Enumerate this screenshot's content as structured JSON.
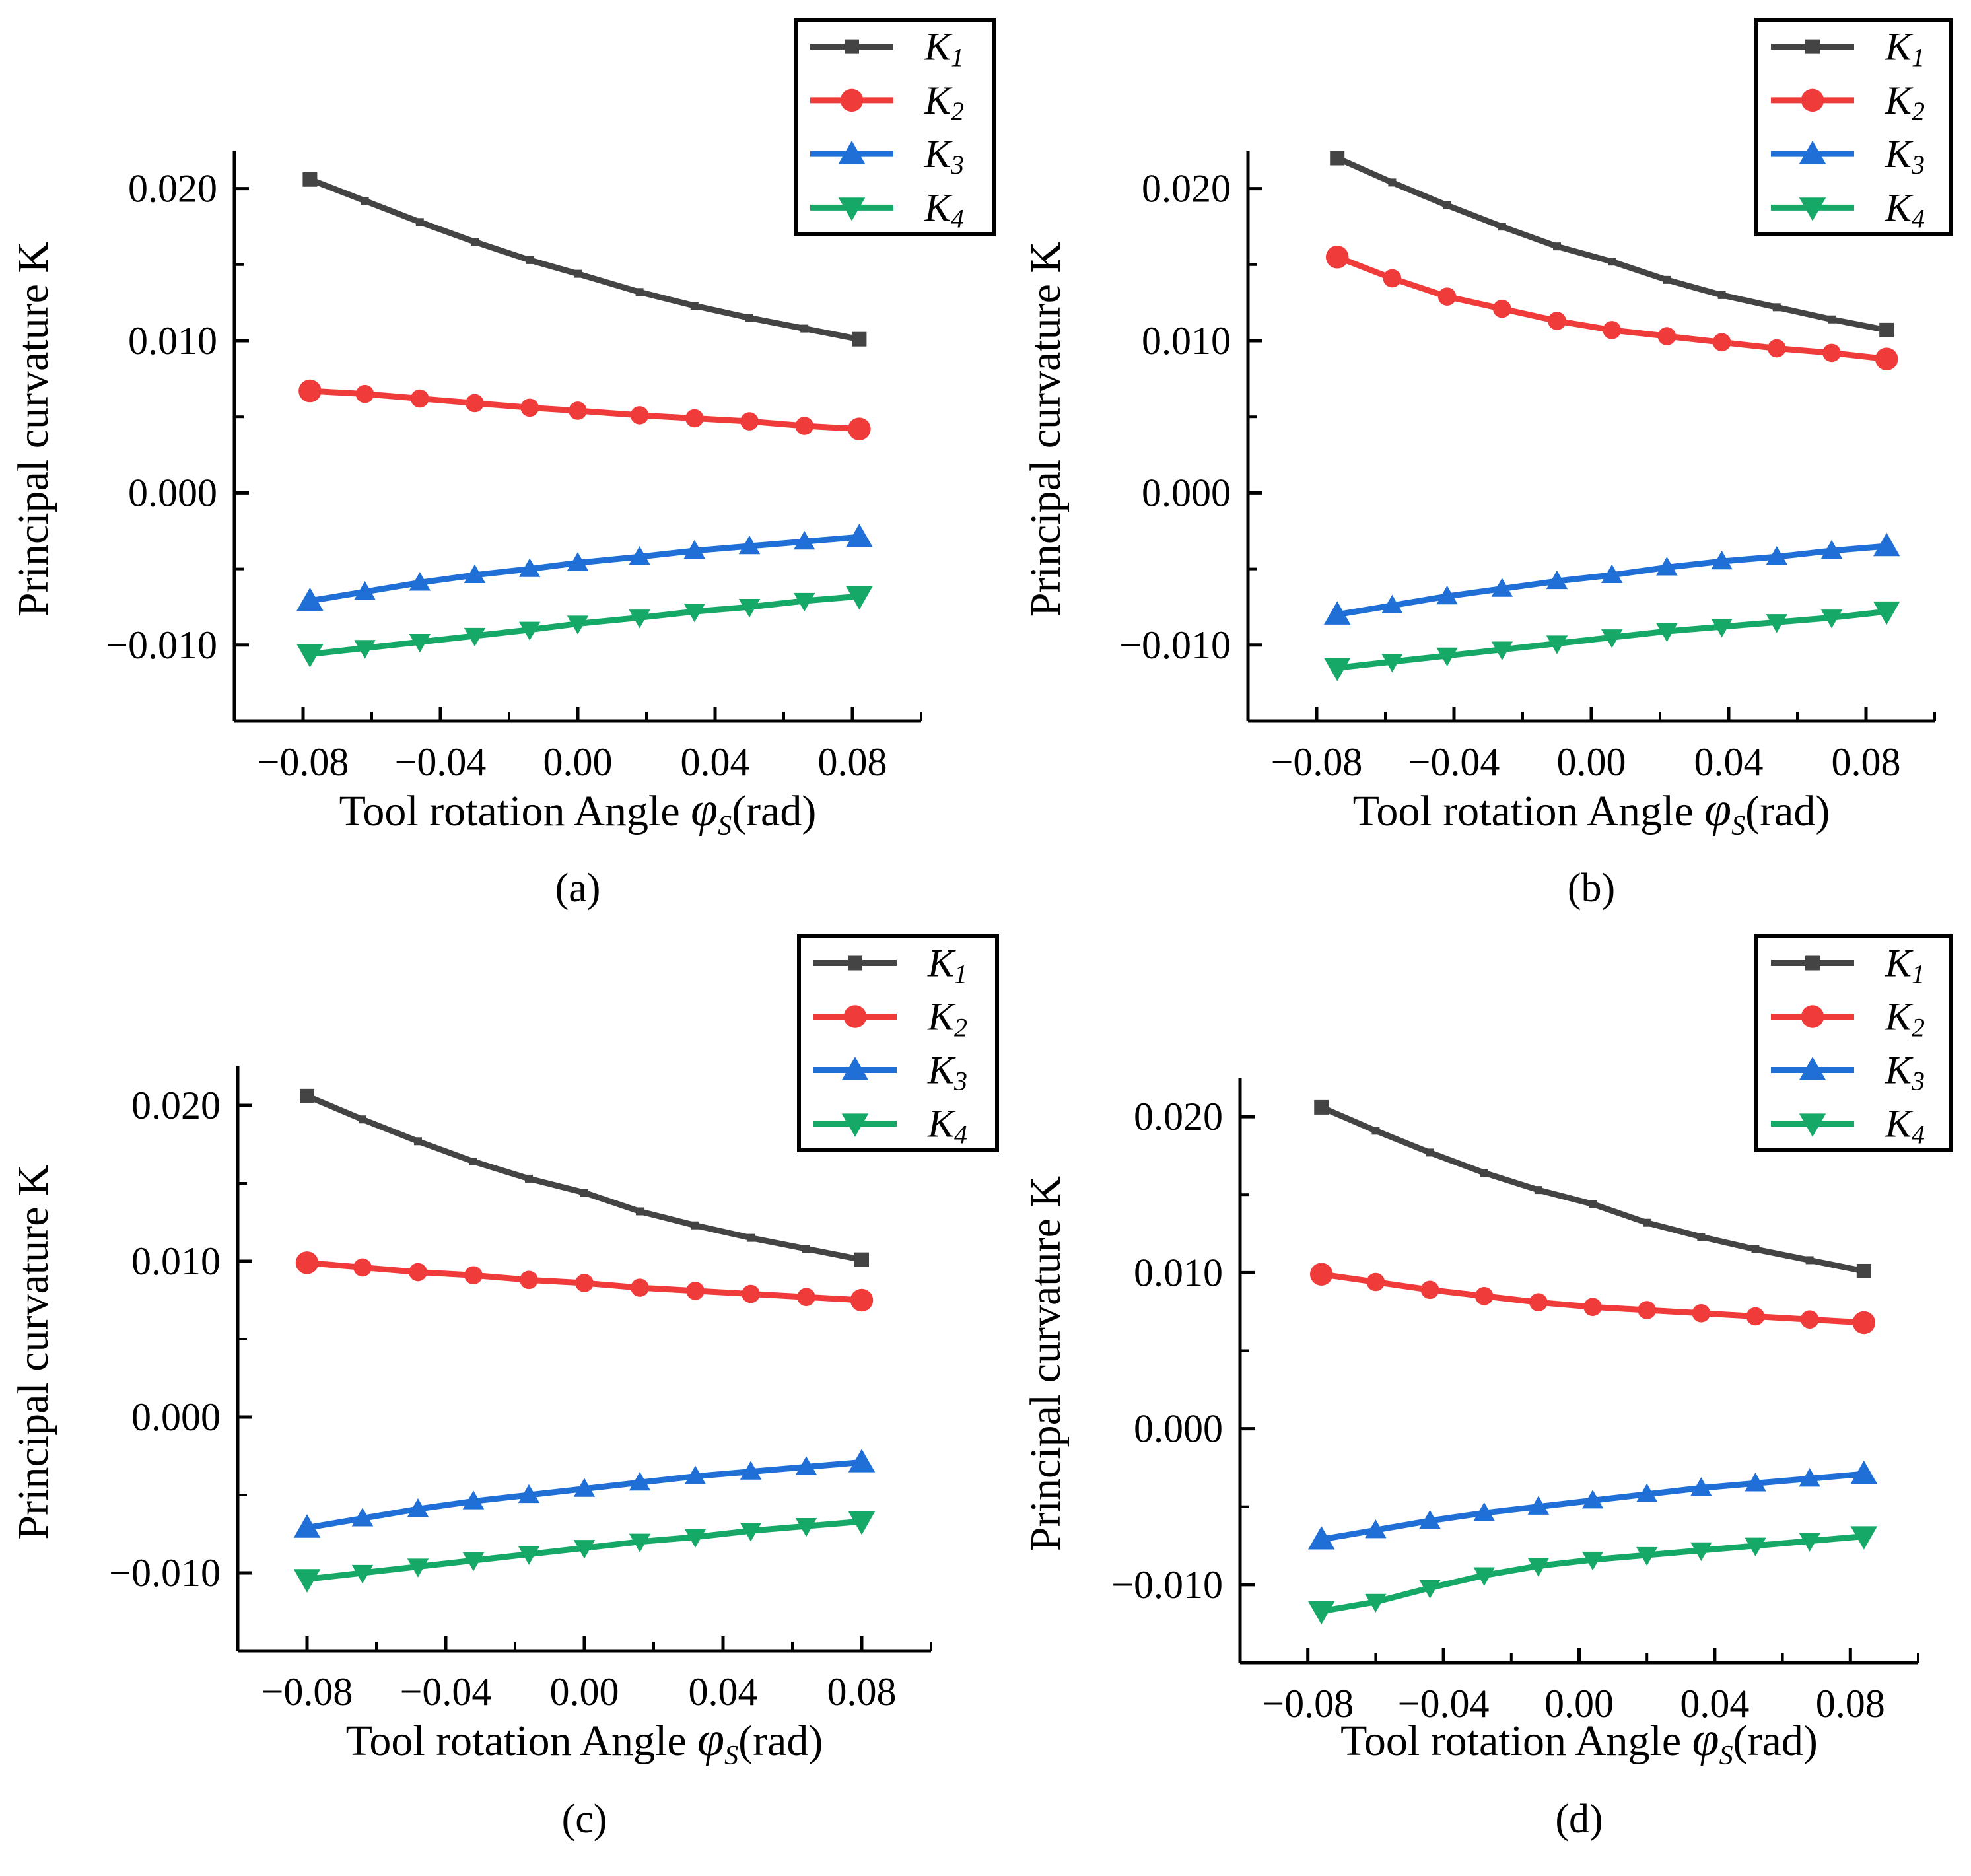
{
  "figure": {
    "panels": [
      "a",
      "b",
      "c",
      "d"
    ]
  },
  "chart_data": [
    {
      "panel_label": "(a)",
      "type": "line",
      "xlabel": "Tool rotation Angle",
      "xlabel_symbol": "φ",
      "xlabel_symbol_sub": "S",
      "xlabel_unit": "(rad)",
      "ylabel": "Principal curvature K",
      "xlim": [
        -0.1,
        0.1
      ],
      "ylim": [
        -0.015,
        0.0225
      ],
      "xticks": [
        -0.08,
        -0.04,
        0.0,
        0.04,
        0.08
      ],
      "xtick_labels": [
        "−0.08",
        "−0.04",
        "0.00",
        "0.04",
        "0.08"
      ],
      "yticks": [
        0.02,
        0.01,
        0.0,
        -0.01
      ],
      "ytick_labels": [
        "0.020",
        "0.010",
        "0.000",
        "−0.010"
      ],
      "legend_position": "top-right",
      "x": [
        -0.078,
        -0.062,
        -0.046,
        -0.03,
        -0.014,
        0.0,
        0.018,
        0.034,
        0.05,
        0.066,
        0.082
      ],
      "series": [
        {
          "name": "K",
          "sub": "1",
          "color": "#444444",
          "marker": "square",
          "values": [
            0.0206,
            0.0192,
            0.0178,
            0.0165,
            0.0153,
            0.0144,
            0.0132,
            0.0123,
            0.0115,
            0.0108,
            0.0101
          ]
        },
        {
          "name": "K",
          "sub": "2",
          "color": "#f03b3b",
          "marker": "circle",
          "values": [
            0.0067,
            0.0065,
            0.0062,
            0.0059,
            0.0056,
            0.0054,
            0.0051,
            0.0049,
            0.0047,
            0.0044,
            0.0042
          ]
        },
        {
          "name": "K",
          "sub": "3",
          "color": "#1f6fd6",
          "marker": "triangle-up",
          "values": [
            -0.0071,
            -0.0065,
            -0.0059,
            -0.0054,
            -0.005,
            -0.0046,
            -0.0042,
            -0.0038,
            -0.0035,
            -0.0032,
            -0.0029
          ]
        },
        {
          "name": "K",
          "sub": "4",
          "color": "#16a866",
          "marker": "triangle-down",
          "values": [
            -0.0106,
            -0.0102,
            -0.0098,
            -0.0094,
            -0.009,
            -0.0086,
            -0.0082,
            -0.0078,
            -0.0075,
            -0.0071,
            -0.0068
          ]
        }
      ]
    },
    {
      "panel_label": "(b)",
      "type": "line",
      "xlabel": "Tool rotation Angle",
      "xlabel_symbol": "φ",
      "xlabel_symbol_sub": "S",
      "xlabel_unit": "(rad)",
      "ylabel": "Principal curvature K",
      "xlim": [
        -0.1,
        0.1
      ],
      "ylim": [
        -0.015,
        0.0225
      ],
      "xticks": [
        -0.08,
        -0.04,
        0.0,
        0.04,
        0.08
      ],
      "xtick_labels": [
        "−0.08",
        "−0.04",
        "0.00",
        "0.04",
        "0.08"
      ],
      "yticks": [
        0.02,
        0.01,
        0.0,
        -0.01
      ],
      "ytick_labels": [
        "0.020",
        "0.010",
        "0.000",
        "−0.010"
      ],
      "legend_position": "top-right",
      "x": [
        -0.074,
        -0.058,
        -0.042,
        -0.026,
        -0.01,
        0.006,
        0.022,
        0.038,
        0.054,
        0.07,
        0.086
      ],
      "series": [
        {
          "name": "K",
          "sub": "1",
          "color": "#444444",
          "marker": "square",
          "values": [
            0.022,
            0.0204,
            0.0189,
            0.0175,
            0.0162,
            0.0152,
            0.014,
            0.013,
            0.0122,
            0.0114,
            0.0107
          ]
        },
        {
          "name": "K",
          "sub": "2",
          "color": "#f03b3b",
          "marker": "circle",
          "values": [
            0.0155,
            0.0141,
            0.0129,
            0.0121,
            0.0113,
            0.0107,
            0.0103,
            0.0099,
            0.0095,
            0.0092,
            0.0088
          ]
        },
        {
          "name": "K",
          "sub": "3",
          "color": "#1f6fd6",
          "marker": "triangle-up",
          "values": [
            -0.008,
            -0.0074,
            -0.0068,
            -0.0063,
            -0.0058,
            -0.0054,
            -0.0049,
            -0.0045,
            -0.0042,
            -0.0038,
            -0.0035
          ]
        },
        {
          "name": "K",
          "sub": "4",
          "color": "#16a866",
          "marker": "triangle-down",
          "values": [
            -0.0115,
            -0.0111,
            -0.0107,
            -0.0103,
            -0.0099,
            -0.0095,
            -0.0091,
            -0.0088,
            -0.0085,
            -0.0082,
            -0.0078
          ]
        }
      ]
    },
    {
      "panel_label": "(c)",
      "type": "line",
      "xlabel": "Tool rotation Angle",
      "xlabel_symbol": "φ",
      "xlabel_symbol_sub": "S",
      "xlabel_unit": "(rad)",
      "ylabel": "Principal curvature K",
      "xlim": [
        -0.1,
        0.1
      ],
      "ylim": [
        -0.015,
        0.0225
      ],
      "xticks": [
        -0.08,
        -0.04,
        0.0,
        0.04,
        0.08
      ],
      "xtick_labels": [
        "−0.08",
        "−0.04",
        "0.00",
        "0.04",
        "0.08"
      ],
      "yticks": [
        0.02,
        0.01,
        0.0,
        -0.01
      ],
      "ytick_labels": [
        "0.020",
        "0.010",
        "0.000",
        "−0.010"
      ],
      "legend_position": "top-right",
      "x": [
        -0.08,
        -0.064,
        -0.048,
        -0.032,
        -0.016,
        0.0,
        0.016,
        0.032,
        0.048,
        0.064,
        0.08
      ],
      "series": [
        {
          "name": "K",
          "sub": "1",
          "color": "#444444",
          "marker": "square",
          "values": [
            0.0206,
            0.0191,
            0.0177,
            0.0164,
            0.0153,
            0.0144,
            0.0132,
            0.0123,
            0.0115,
            0.0108,
            0.0101
          ]
        },
        {
          "name": "K",
          "sub": "2",
          "color": "#f03b3b",
          "marker": "circle",
          "values": [
            0.0099,
            0.0096,
            0.0093,
            0.0091,
            0.0088,
            0.0086,
            0.0083,
            0.0081,
            0.0079,
            0.0077,
            0.0075
          ]
        },
        {
          "name": "K",
          "sub": "3",
          "color": "#1f6fd6",
          "marker": "triangle-up",
          "values": [
            -0.0071,
            -0.0065,
            -0.0059,
            -0.0054,
            -0.005,
            -0.0046,
            -0.0042,
            -0.0038,
            -0.0035,
            -0.0032,
            -0.0029
          ]
        },
        {
          "name": "K",
          "sub": "4",
          "color": "#16a866",
          "marker": "triangle-down",
          "values": [
            -0.0104,
            -0.01,
            -0.0096,
            -0.0092,
            -0.0088,
            -0.0084,
            -0.008,
            -0.0077,
            -0.0073,
            -0.007,
            -0.0067
          ]
        }
      ]
    },
    {
      "panel_label": "(d)",
      "type": "line",
      "xlabel": "Tool rotation Angle",
      "xlabel_symbol": "φ",
      "xlabel_symbol_sub": "S",
      "xlabel_unit": "(rad)",
      "ylabel": "Principal curvature K",
      "xlim": [
        -0.1,
        0.1
      ],
      "ylim": [
        -0.015,
        0.0225
      ],
      "xticks": [
        -0.08,
        -0.04,
        0.0,
        0.04,
        0.08
      ],
      "xtick_labels": [
        "−0.08",
        "−0.04",
        "0.00",
        "0.04",
        "0.08"
      ],
      "yticks": [
        0.02,
        0.01,
        0.0,
        -0.01
      ],
      "ytick_labels": [
        "0.020",
        "0.010",
        "0.000",
        "−0.010"
      ],
      "legend_position": "top-right",
      "x": [
        -0.076,
        -0.06,
        -0.044,
        -0.028,
        -0.012,
        0.004,
        0.02,
        0.036,
        0.052,
        0.068,
        0.084
      ],
      "series": [
        {
          "name": "K",
          "sub": "1",
          "color": "#444444",
          "marker": "square",
          "values": [
            0.0206,
            0.0191,
            0.0177,
            0.0164,
            0.0153,
            0.0144,
            0.0132,
            0.0123,
            0.0115,
            0.0108,
            0.0101
          ]
        },
        {
          "name": "K",
          "sub": "2",
          "color": "#f03b3b",
          "marker": "circle",
          "values": [
            0.0099,
            0.0094,
            0.0089,
            0.0085,
            0.0081,
            0.0078,
            0.0076,
            0.0074,
            0.0072,
            0.007,
            0.0068
          ]
        },
        {
          "name": "K",
          "sub": "3",
          "color": "#1f6fd6",
          "marker": "triangle-up",
          "values": [
            -0.0071,
            -0.0065,
            -0.0059,
            -0.0054,
            -0.005,
            -0.0046,
            -0.0042,
            -0.0038,
            -0.0035,
            -0.0032,
            -0.0029
          ]
        },
        {
          "name": "K",
          "sub": "4",
          "color": "#16a866",
          "marker": "triangle-down",
          "values": [
            -0.0117,
            -0.0111,
            -0.0102,
            -0.0094,
            -0.0088,
            -0.0084,
            -0.0081,
            -0.0078,
            -0.0075,
            -0.0072,
            -0.0069
          ]
        }
      ]
    }
  ]
}
